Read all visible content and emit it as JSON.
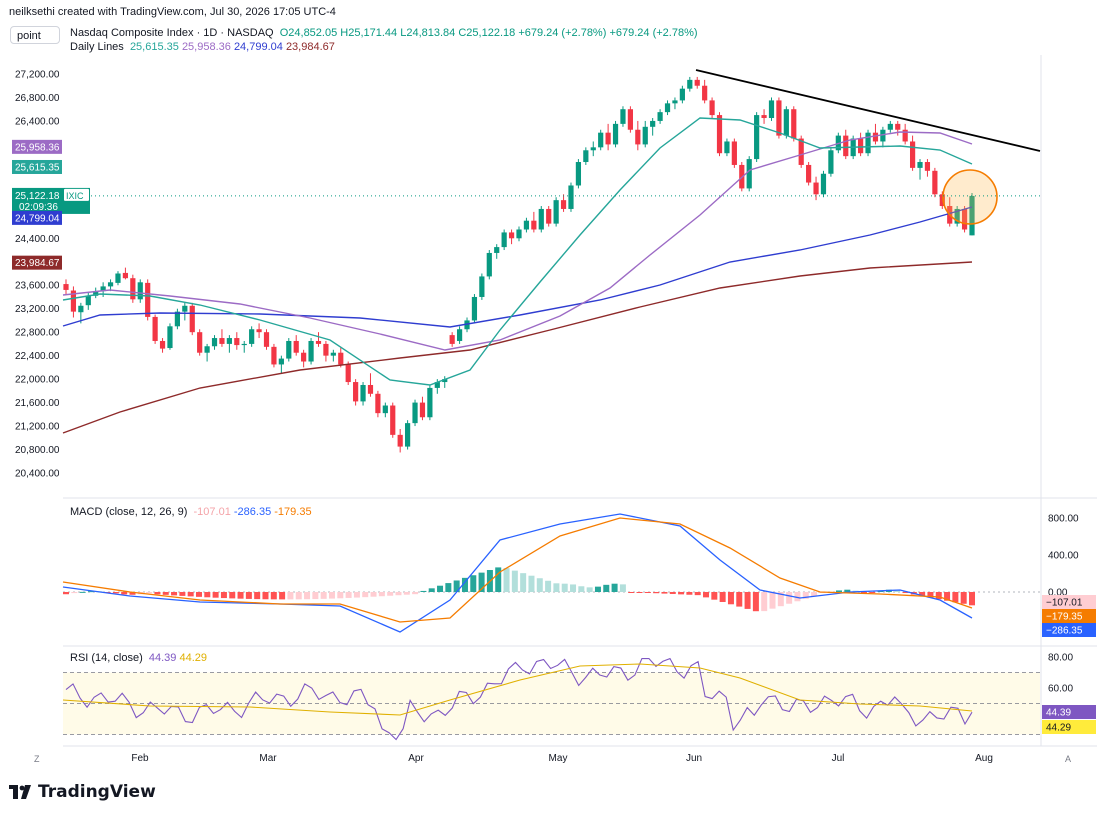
{
  "credit": "neilksethi created with TradingView.com, Jul 30, 2026 17:05 UTC-4",
  "toolbar": {
    "symbol_button": "point"
  },
  "legend": {
    "title": "Nasdaq Composite Index · 1D · NASDAQ",
    "open": "O24,852.05",
    "high": "H25,171.44",
    "low": "L24,813.84",
    "close": "C25,122.18",
    "change1": "+679.24 (+2.78%)",
    "change2": "+679.24 (+2.78%)",
    "ma_label": "Daily Lines",
    "ma_values": [
      "25,615.35",
      "25,958.36",
      "24,799.04",
      "23,984.67"
    ]
  },
  "colors": {
    "up": "#089981",
    "down": "#f23645",
    "ma20": "#26a69a",
    "ma50": "#9c6bc5",
    "ma100": "#2f3dd0",
    "ma200": "#8e2a2a",
    "macd": "#2962ff",
    "signal": "#f57c00",
    "rsi": "#7e57c2",
    "rsi_signal": "#e0b000"
  },
  "price_badges": {
    "symbol": "IXIC",
    "last": "25,122.18",
    "countdown": "02:09:36",
    "ma50": "25,958.36",
    "ma20": "25,615.35",
    "ma100": "24,799.04",
    "ma200": "23,984.67"
  },
  "macd_legend": {
    "label": "MACD (close, 12, 26, 9)",
    "hist": "-107.01",
    "macd": "-286.35",
    "signal": "-179.35"
  },
  "macd_badges": {
    "hist": "−107.01",
    "signal": "−179.35",
    "macd": "−286.35"
  },
  "rsi_legend": {
    "label": "RSI (14, close)",
    "rsi": "44.39",
    "signal": "44.29"
  },
  "rsi_badges": {
    "rsi": "44.39",
    "signal": "44.29"
  },
  "footer": {
    "brand": "TradingView",
    "z": "Z",
    "a": "A"
  },
  "chart_data": [
    {
      "type": "candlestick",
      "title": "Nasdaq Composite Index · 1D · NASDAQ",
      "x_ticks": [
        "Feb",
        "Mar",
        "Apr",
        "May",
        "Jun",
        "Jul",
        "Aug"
      ],
      "y_ticks": [
        "27,200.00",
        "26,800.00",
        "26,400.00",
        "26,000.00",
        "25,600.00",
        "25,200.00",
        "24,800.00",
        "24,400.00",
        "24,000.00",
        "23,600.00",
        "23,200.00",
        "22,800.00",
        "22,400.00",
        "22,000.00",
        "21,600.00",
        "21,200.00",
        "20,800.00",
        "20,400.00"
      ],
      "ylim": [
        20200,
        27400
      ],
      "candles_ohlc": [
        [
          23620,
          23700,
          23450,
          23520
        ],
        [
          23510,
          23580,
          23050,
          23150
        ],
        [
          23140,
          23300,
          22950,
          23250
        ],
        [
          23260,
          23480,
          23180,
          23420
        ],
        [
          23420,
          23560,
          23380,
          23500
        ],
        [
          23500,
          23650,
          23400,
          23580
        ],
        [
          23580,
          23700,
          23500,
          23650
        ],
        [
          23640,
          23840,
          23600,
          23800
        ],
        [
          23810,
          23900,
          23700,
          23720
        ],
        [
          23720,
          23780,
          23300,
          23360
        ],
        [
          23360,
          23700,
          23300,
          23650
        ],
        [
          23640,
          23700,
          23000,
          23060
        ],
        [
          23060,
          23100,
          22600,
          22650
        ],
        [
          22650,
          22700,
          22450,
          22520
        ],
        [
          22530,
          22950,
          22500,
          22900
        ],
        [
          22900,
          23200,
          22850,
          23150
        ],
        [
          23150,
          23300,
          23000,
          23250
        ],
        [
          23250,
          23300,
          22750,
          22800
        ],
        [
          22800,
          22850,
          22400,
          22450
        ],
        [
          22450,
          22600,
          22300,
          22560
        ],
        [
          22560,
          22750,
          22500,
          22700
        ],
        [
          22700,
          22850,
          22550,
          22600
        ],
        [
          22600,
          22750,
          22450,
          22700
        ],
        [
          22700,
          22800,
          22500,
          22580
        ],
        [
          22580,
          22650,
          22450,
          22600
        ],
        [
          22600,
          22900,
          22550,
          22850
        ],
        [
          22850,
          22950,
          22700,
          22800
        ],
        [
          22800,
          22850,
          22500,
          22550
        ],
        [
          22550,
          22600,
          22200,
          22250
        ],
        [
          22250,
          22400,
          22100,
          22350
        ],
        [
          22350,
          22700,
          22300,
          22650
        ],
        [
          22650,
          22750,
          22400,
          22450
        ],
        [
          22450,
          22500,
          22200,
          22300
        ],
        [
          22300,
          22700,
          22250,
          22650
        ],
        [
          22650,
          22800,
          22550,
          22600
        ],
        [
          22600,
          22650,
          22300,
          22400
        ],
        [
          22400,
          22500,
          22300,
          22450
        ],
        [
          22450,
          22550,
          22200,
          22250
        ],
        [
          22250,
          22300,
          21900,
          21950
        ],
        [
          21950,
          22000,
          21550,
          21620
        ],
        [
          21620,
          21950,
          21550,
          21900
        ],
        [
          21900,
          22100,
          21700,
          21750
        ],
        [
          21750,
          21800,
          21350,
          21420
        ],
        [
          21420,
          21600,
          21350,
          21550
        ],
        [
          21550,
          21600,
          21000,
          21050
        ],
        [
          21050,
          21150,
          20750,
          20850
        ],
        [
          20850,
          21300,
          20800,
          21250
        ],
        [
          21250,
          21650,
          21200,
          21600
        ],
        [
          21600,
          21700,
          21300,
          21350
        ],
        [
          21350,
          21900,
          21300,
          21850
        ],
        [
          21850,
          22000,
          21750,
          21950
        ],
        [
          21950,
          22050,
          21850,
          22000
        ],
        [
          22750,
          22800,
          22550,
          22600
        ],
        [
          22650,
          22900,
          22600,
          22850
        ],
        [
          22850,
          23050,
          22800,
          23000
        ],
        [
          23000,
          23450,
          22950,
          23400
        ],
        [
          23400,
          23800,
          23350,
          23750
        ],
        [
          23750,
          24200,
          23700,
          24150
        ],
        [
          24150,
          24300,
          24050,
          24250
        ],
        [
          24250,
          24550,
          24200,
          24500
        ],
        [
          24500,
          24550,
          24300,
          24400
        ],
        [
          24400,
          24600,
          24350,
          24550
        ],
        [
          24550,
          24750,
          24500,
          24700
        ],
        [
          24700,
          24850,
          24500,
          24550
        ],
        [
          24550,
          24950,
          24500,
          24900
        ],
        [
          24900,
          24950,
          24600,
          24650
        ],
        [
          24650,
          25100,
          24600,
          25050
        ],
        [
          25050,
          25150,
          24850,
          24900
        ],
        [
          24900,
          25350,
          24850,
          25300
        ],
        [
          25300,
          25750,
          25250,
          25700
        ],
        [
          25700,
          25950,
          25650,
          25900
        ],
        [
          25900,
          26050,
          25800,
          25950
        ],
        [
          25950,
          26250,
          25900,
          26200
        ],
        [
          26200,
          26350,
          25900,
          26000
        ],
        [
          26000,
          26400,
          25950,
          26350
        ],
        [
          26350,
          26650,
          26300,
          26600
        ],
        [
          26600,
          26650,
          26200,
          26250
        ],
        [
          26250,
          26400,
          25900,
          26000
        ],
        [
          26000,
          26400,
          25950,
          26300
        ],
        [
          26300,
          26450,
          26150,
          26400
        ],
        [
          26400,
          26600,
          26350,
          26550
        ],
        [
          26550,
          26750,
          26500,
          26700
        ],
        [
          26700,
          26800,
          26600,
          26750
        ],
        [
          26750,
          27000,
          26700,
          26950
        ],
        [
          26950,
          27150,
          26900,
          27100
        ],
        [
          27100,
          27150,
          26950,
          27000
        ],
        [
          27000,
          27100,
          26700,
          26750
        ],
        [
          26750,
          26800,
          26450,
          26500
        ],
        [
          26500,
          26550,
          25800,
          25850
        ],
        [
          25850,
          26100,
          25800,
          26050
        ],
        [
          26050,
          26100,
          25600,
          25650
        ],
        [
          25650,
          25700,
          25200,
          25250
        ],
        [
          25250,
          25800,
          25200,
          25750
        ],
        [
          25750,
          26550,
          25700,
          26500
        ],
        [
          26500,
          26600,
          26350,
          26450
        ],
        [
          26450,
          26800,
          26400,
          26750
        ],
        [
          26750,
          26800,
          26100,
          26150
        ],
        [
          26150,
          26650,
          26100,
          26600
        ],
        [
          26600,
          26650,
          26050,
          26100
        ],
        [
          26100,
          26150,
          25600,
          25650
        ],
        [
          25650,
          25700,
          25300,
          25350
        ],
        [
          25350,
          25450,
          25050,
          25150
        ],
        [
          25150,
          25550,
          25100,
          25500
        ],
        [
          25500,
          25950,
          25450,
          25900
        ],
        [
          25900,
          26200,
          25850,
          26150
        ],
        [
          26150,
          26250,
          25750,
          25800
        ],
        [
          25800,
          26150,
          25750,
          26100
        ],
        [
          26100,
          26200,
          25800,
          25850
        ],
        [
          25850,
          26250,
          25800,
          26200
        ],
        [
          26200,
          26350,
          26000,
          26050
        ],
        [
          26050,
          26300,
          25950,
          26250
        ],
        [
          26250,
          26400,
          26200,
          26350
        ],
        [
          26350,
          26400,
          26150,
          26250
        ],
        [
          26250,
          26350,
          26000,
          26050
        ],
        [
          26050,
          26150,
          25550,
          25600
        ],
        [
          25600,
          25750,
          25400,
          25700
        ],
        [
          25700,
          25750,
          25450,
          25550
        ],
        [
          25550,
          25600,
          25100,
          25150
        ],
        [
          25150,
          25200,
          24900,
          24950
        ],
        [
          24950,
          25100,
          24600,
          24650
        ],
        [
          24650,
          24950,
          24600,
          24900
        ],
        [
          24900,
          24950,
          24500,
          24550
        ],
        [
          24450,
          25171,
          24450,
          25122
        ]
      ],
      "series": [
        {
          "name": "MA 20",
          "value": 25615.35
        },
        {
          "name": "MA 50",
          "value": 25958.36
        },
        {
          "name": "MA 100",
          "value": 24799.04
        },
        {
          "name": "MA 200",
          "value": 23984.67
        }
      ],
      "annotations": [
        "descending trendline from June high",
        "circle around latest candles"
      ]
    },
    {
      "type": "line+histogram",
      "title": "MACD (close, 12, 26, 9)",
      "y_ticks": [
        "800.00",
        "400.00",
        "0.00"
      ],
      "ylim": [
        -380,
        900
      ],
      "series": [
        {
          "name": "MACD",
          "last": -286.35
        },
        {
          "name": "Signal",
          "last": -179.35
        },
        {
          "name": "Histogram",
          "last": -107.01
        }
      ]
    },
    {
      "type": "line",
      "title": "RSI (14, close)",
      "y_ticks": [
        "80.00",
        "60.00"
      ],
      "ylim": [
        20,
        80
      ],
      "bands": [
        70,
        50,
        30
      ],
      "series": [
        {
          "name": "RSI",
          "last": 44.39
        },
        {
          "name": "RSI-based MA",
          "last": 44.29
        }
      ]
    }
  ]
}
